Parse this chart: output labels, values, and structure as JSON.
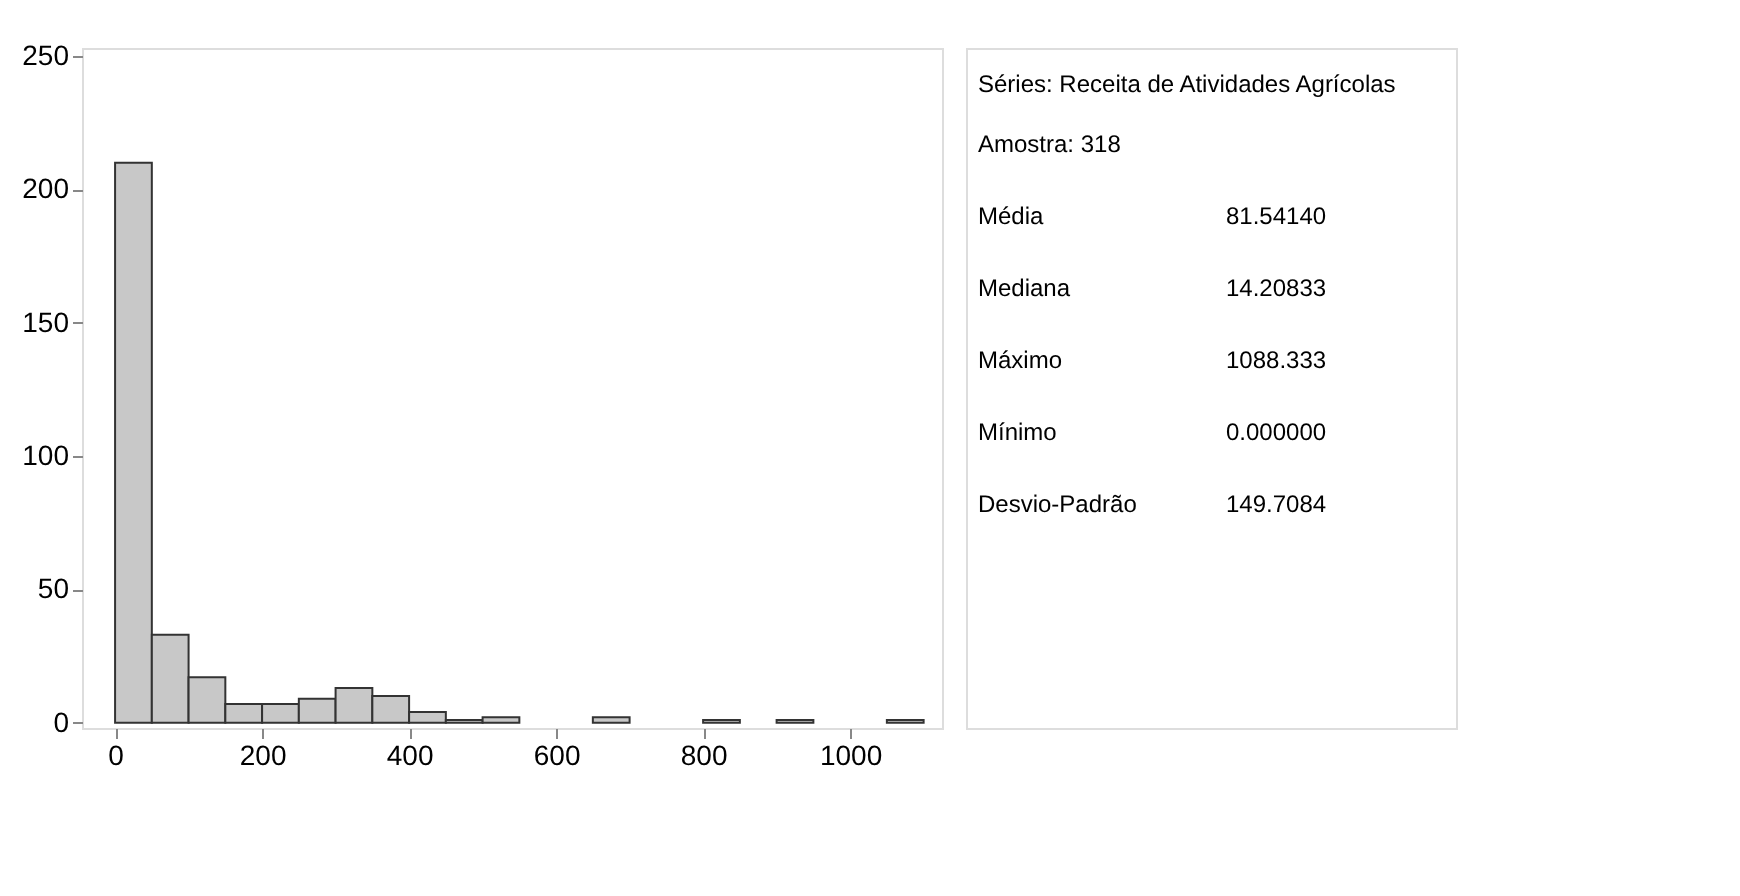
{
  "chart_data": [
    {
      "type": "histogram",
      "bins": [
        0,
        50,
        100,
        150,
        200,
        250,
        300,
        350,
        400,
        450,
        500,
        550,
        600,
        650,
        700,
        750,
        800,
        850,
        900,
        950,
        1000,
        1050,
        1100
      ],
      "values": [
        210,
        33,
        17,
        7,
        7,
        9,
        13,
        10,
        4,
        1,
        2,
        0,
        0,
        2,
        0,
        0,
        1,
        0,
        1,
        0,
        0,
        1
      ],
      "color": "#c8c8c8",
      "xlim": [
        -45,
        1125
      ],
      "xticks": [
        0,
        200,
        400,
        600,
        800,
        1000
      ],
      "ylim": [
        -2,
        253
      ],
      "yticks": [
        0,
        50,
        100,
        150,
        200,
        250
      ],
      "grid": false
    },
    {
      "type": "other",
      "title": "Séries: Receita de Atividades Agrícolas",
      "annotations": [
        "Amostra: 318",
        "Média",
        "81.54140",
        "Mediana",
        "14.20833",
        "Máximo",
        "1088.333",
        "Mínimo",
        "0.000000",
        "Desvio-Padrão",
        "149.7084"
      ]
    }
  ]
}
